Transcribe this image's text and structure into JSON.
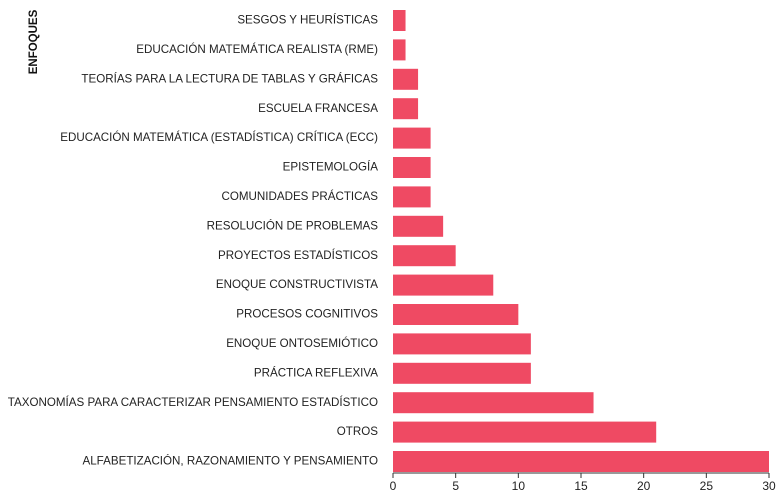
{
  "chart_data": {
    "type": "bar",
    "orientation": "horizontal",
    "ylabel": "ENFOQUES",
    "xlabel": "",
    "xlim": [
      0,
      30
    ],
    "xticks": [
      0,
      5,
      10,
      15,
      20,
      25,
      30
    ],
    "grid": false,
    "bar_color": "#ef4a63",
    "categories": [
      "SESGOS Y HEURÍSTICAS",
      "EDUCACIÓN MATEMÁTICA REALISTA (RME)",
      "TEORÍAS PARA LA LECTURA DE TABLAS Y GRÁFICAS",
      "ESCUELA FRANCESA",
      "EDUCACIÓN MATEMÁTICA (ESTADÍSTICA) CRÍTICA (ECC)",
      "EPISTEMOLOGÍA",
      "COMUNIDADES PRÁCTICAS",
      "RESOLUCIÓN DE PROBLEMAS",
      "PROYECTOS ESTADÍSTICOS",
      "ENOQUE CONSTRUCTIVISTA",
      "PROCESOS COGNITIVOS",
      "ENOQUE ONTOSEMIÓTICO",
      "PRÁCTICA REFLEXIVA",
      "TAXONOMÍAS PARA CARACTERIZAR PENSAMIENTO ESTADÍSTICO",
      "OTROS",
      "ALFABETIZACIÓN, RAZONAMIENTO Y PENSAMIENTO"
    ],
    "values": [
      1,
      1,
      2,
      2,
      3,
      3,
      3,
      4,
      5,
      8,
      10,
      11,
      11,
      16,
      21,
      30
    ]
  }
}
